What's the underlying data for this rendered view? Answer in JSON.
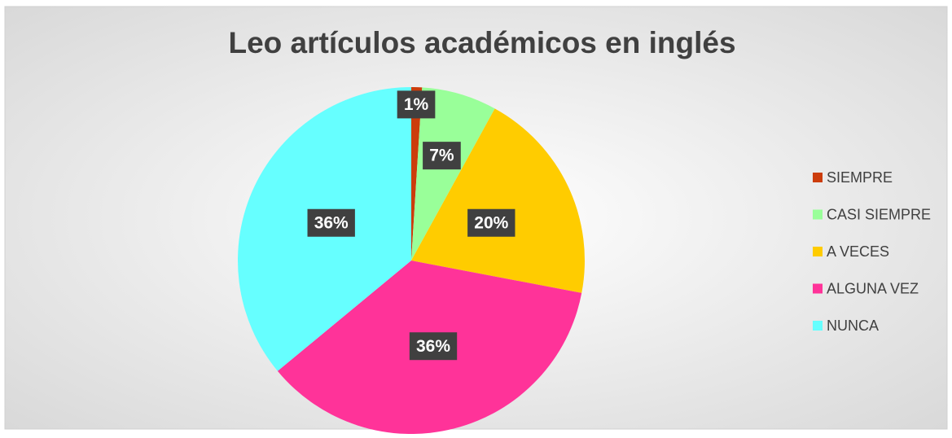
{
  "chart_data": {
    "type": "pie",
    "title": "Leo artículos académicos en inglés",
    "categories": [
      "SIEMPRE",
      "CASI SIEMPRE",
      "A VECES",
      "ALGUNA VEZ",
      "NUNCA"
    ],
    "values": [
      1,
      7,
      20,
      36,
      36
    ],
    "value_labels": [
      "1%",
      "7%",
      "20%",
      "36%",
      "36%"
    ],
    "colors": [
      "#cc3d0c",
      "#99ff99",
      "#ffcc00",
      "#ff3399",
      "#66ffff"
    ],
    "legend": "right"
  }
}
